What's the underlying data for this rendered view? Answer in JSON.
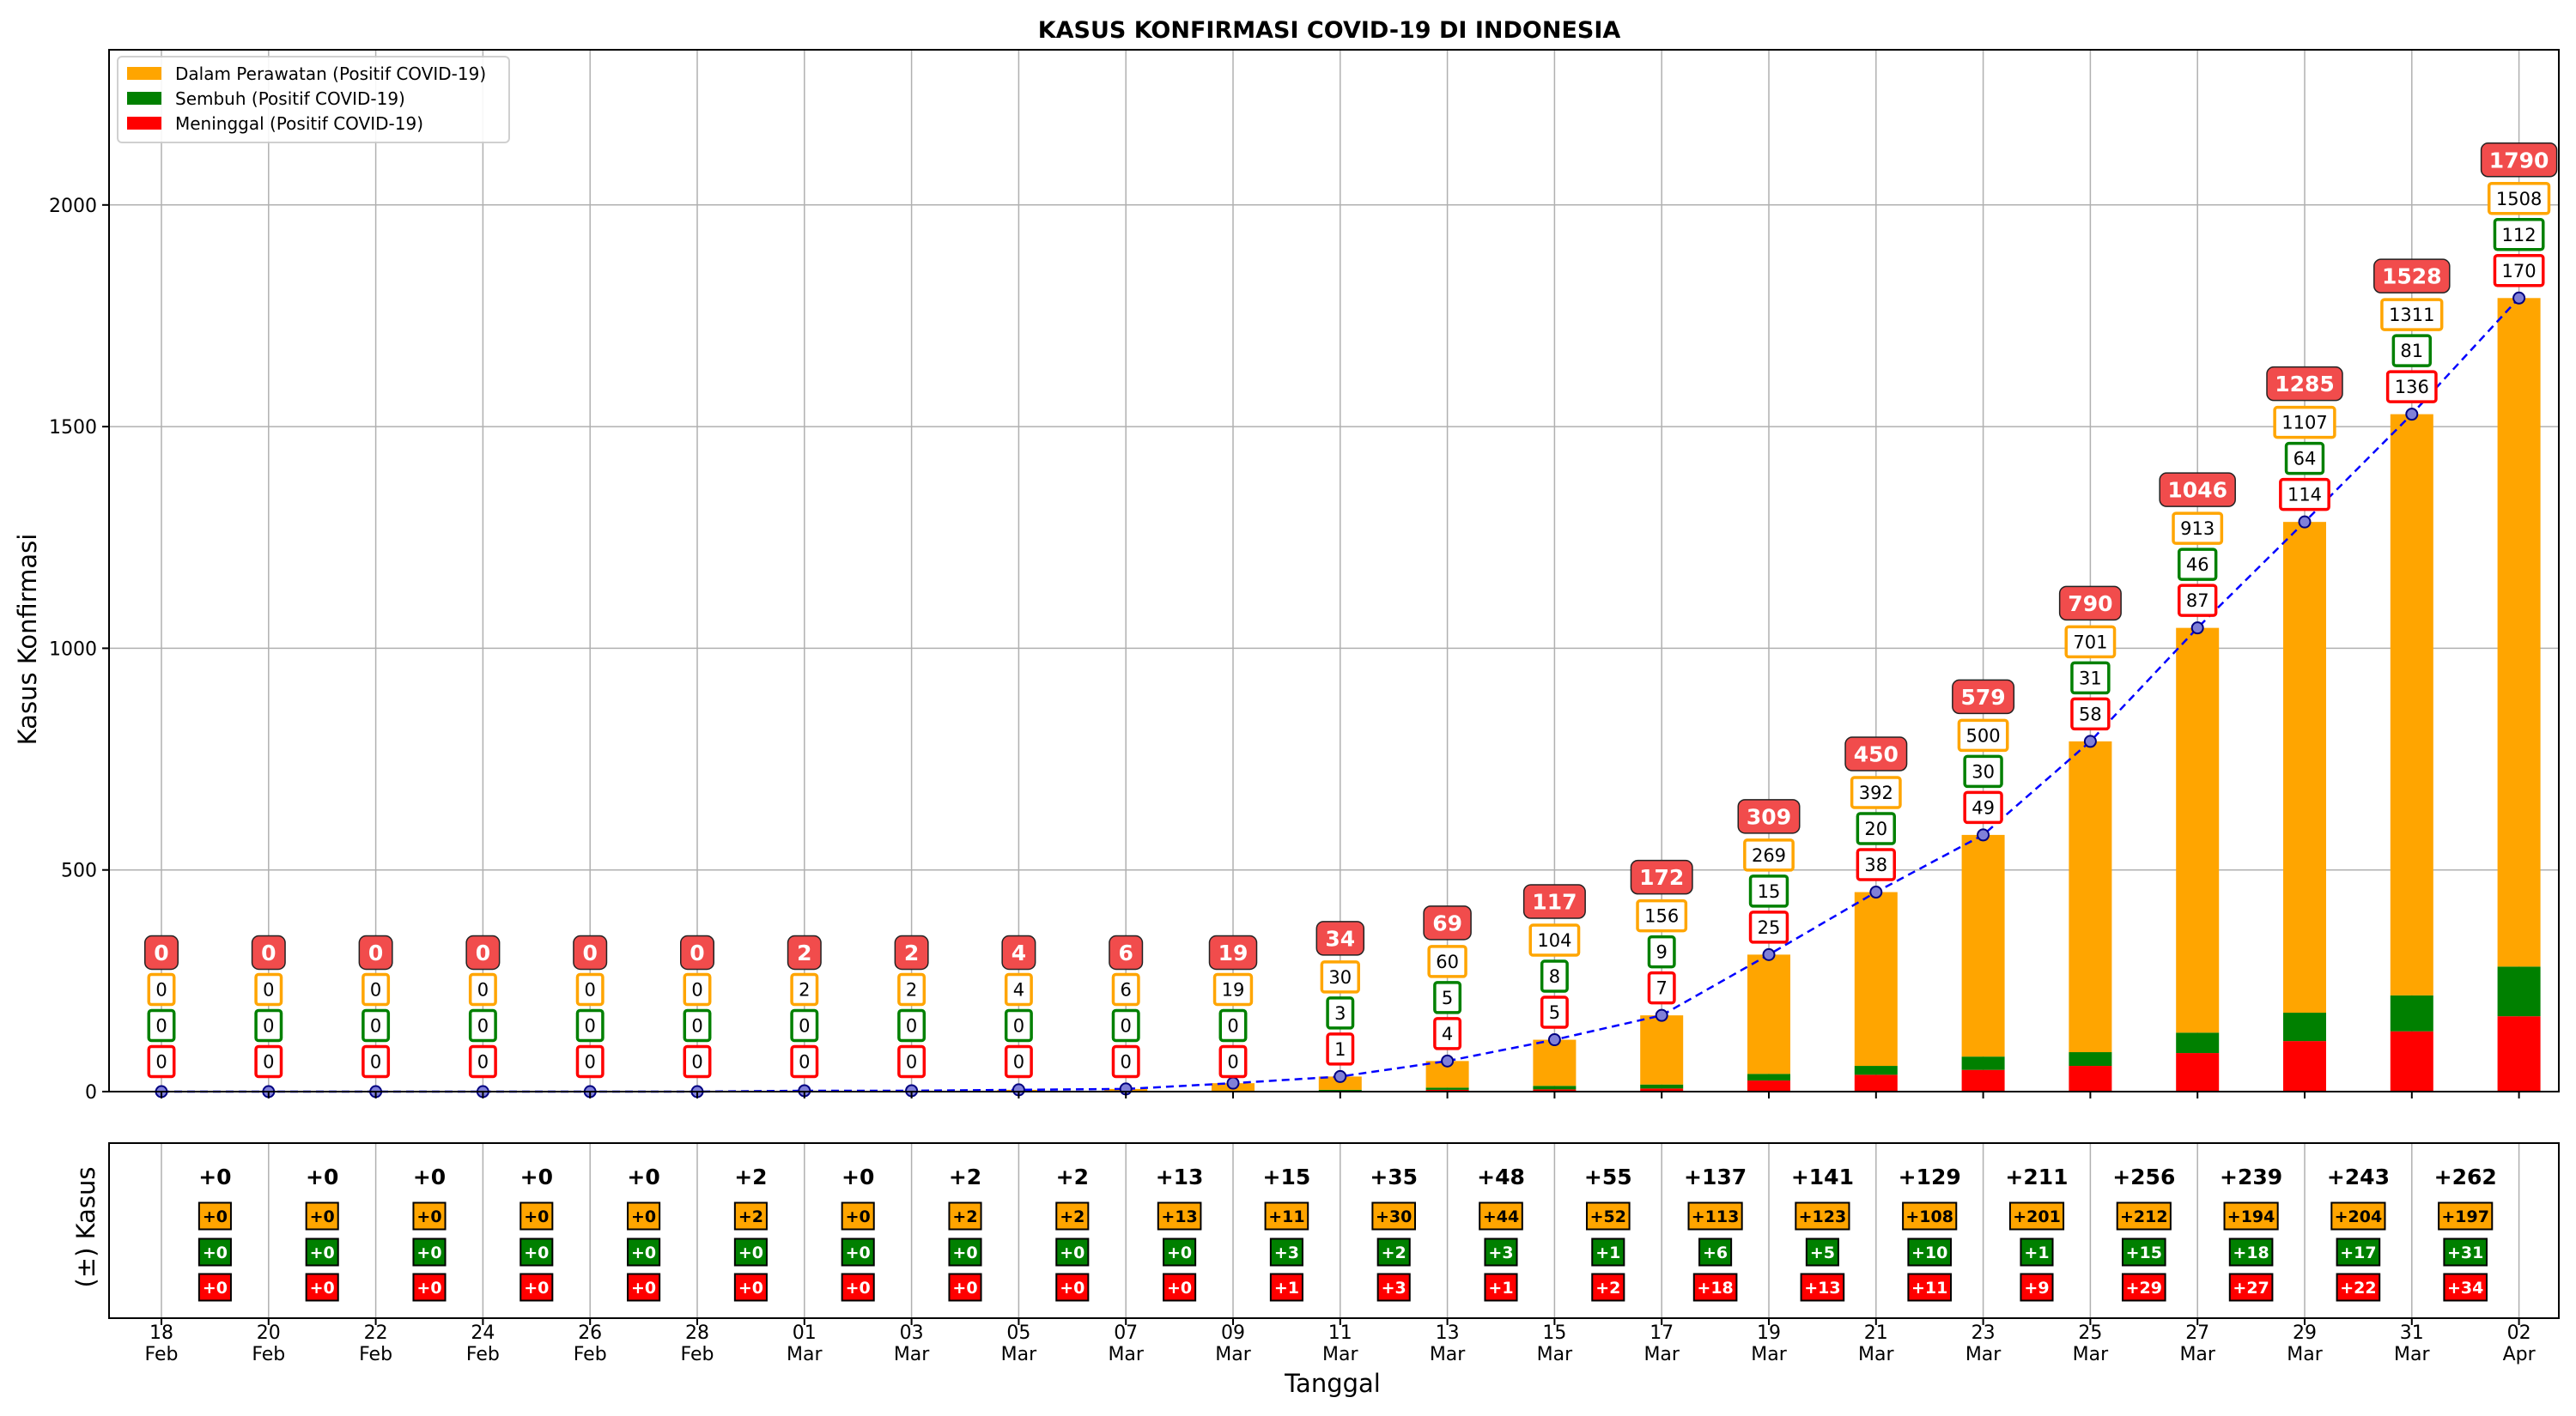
{
  "chart_data": {
    "type": "bar",
    "title": "KASUS KONFIRMASI COVID-19 DI INDONESIA",
    "xlabel": "Tanggal",
    "ylabel": "Kasus Konfirmasi",
    "ylabel_bottom": "(±) Kasus",
    "ylim": [
      0,
      2350
    ],
    "yticks": [
      "0",
      "500",
      "1000",
      "1500",
      "2000"
    ],
    "ytick_values": [
      0,
      500,
      1000,
      1500,
      2000
    ],
    "grid": true,
    "legend_position": "top-left",
    "dates": [
      [
        "18",
        "Feb"
      ],
      [
        "20",
        "Feb"
      ],
      [
        "22",
        "Feb"
      ],
      [
        "24",
        "Feb"
      ],
      [
        "26",
        "Feb"
      ],
      [
        "28",
        "Feb"
      ],
      [
        "01",
        "Mar"
      ],
      [
        "03",
        "Mar"
      ],
      [
        "05",
        "Mar"
      ],
      [
        "07",
        "Mar"
      ],
      [
        "09",
        "Mar"
      ],
      [
        "11",
        "Mar"
      ],
      [
        "13",
        "Mar"
      ],
      [
        "15",
        "Mar"
      ],
      [
        "17",
        "Mar"
      ],
      [
        "19",
        "Mar"
      ],
      [
        "21",
        "Mar"
      ],
      [
        "23",
        "Mar"
      ],
      [
        "25",
        "Mar"
      ],
      [
        "27",
        "Mar"
      ],
      [
        "29",
        "Mar"
      ],
      [
        "31",
        "Mar"
      ],
      [
        "02",
        "Apr"
      ]
    ],
    "series": [
      {
        "name": "Dalam Perawatan (Positif COVID-19)",
        "color": "#FFA500",
        "values": [
          0,
          0,
          0,
          0,
          0,
          0,
          2,
          2,
          4,
          6,
          19,
          30,
          60,
          104,
          156,
          269,
          392,
          500,
          701,
          913,
          1107,
          1311,
          1508
        ],
        "labels": [
          "0",
          "0",
          "0",
          "0",
          "0",
          "0",
          "2",
          "2",
          "4",
          "6",
          "19",
          "30",
          "60",
          "104",
          "156",
          "269",
          "392",
          "500",
          "701",
          "913",
          "1107",
          "1311",
          "1508"
        ]
      },
      {
        "name": "Sembuh (Positif COVID-19)",
        "color": "#008000",
        "values": [
          0,
          0,
          0,
          0,
          0,
          0,
          0,
          0,
          0,
          0,
          0,
          3,
          5,
          8,
          9,
          15,
          20,
          30,
          31,
          46,
          64,
          81,
          112
        ],
        "labels": [
          "0",
          "0",
          "0",
          "0",
          "0",
          "0",
          "0",
          "0",
          "0",
          "0",
          "0",
          "3",
          "5",
          "8",
          "9",
          "15",
          "20",
          "30",
          "31",
          "46",
          "64",
          "81",
          "112"
        ]
      },
      {
        "name": "Meninggal (Positif COVID-19)",
        "color": "#FF0000",
        "values": [
          0,
          0,
          0,
          0,
          0,
          0,
          0,
          0,
          0,
          0,
          0,
          1,
          4,
          5,
          7,
          25,
          38,
          49,
          58,
          87,
          114,
          136,
          170
        ],
        "labels": [
          "0",
          "0",
          "0",
          "0",
          "0",
          "0",
          "0",
          "0",
          "0",
          "0",
          "0",
          "1",
          "4",
          "5",
          "7",
          "25",
          "38",
          "49",
          "58",
          "87",
          "114",
          "136",
          "170"
        ]
      }
    ],
    "total": [
      0,
      0,
      0,
      0,
      0,
      0,
      2,
      2,
      4,
      6,
      19,
      34,
      69,
      117,
      172,
      309,
      450,
      579,
      790,
      1046,
      1285,
      1528,
      1790
    ],
    "total_labels": [
      "0",
      "0",
      "0",
      "0",
      "0",
      "0",
      "2",
      "2",
      "4",
      "6",
      "19",
      "34",
      "69",
      "117",
      "172",
      "309",
      "450",
      "579",
      "790",
      "1046",
      "1285",
      "1528",
      "1790"
    ],
    "delta_total": [
      "+0",
      "+0",
      "+0",
      "+0",
      "+0",
      "+2",
      "+0",
      "+2",
      "+2",
      "+13",
      "+15",
      "+35",
      "+48",
      "+55",
      "+137",
      "+141",
      "+129",
      "+211",
      "+256",
      "+239",
      "+243",
      "+262"
    ],
    "delta_perawatan": [
      "+0",
      "+0",
      "+0",
      "+0",
      "+0",
      "+2",
      "+0",
      "+2",
      "+2",
      "+13",
      "+11",
      "+30",
      "+44",
      "+52",
      "+113",
      "+123",
      "+108",
      "+201",
      "+212",
      "+194",
      "+204",
      "+197"
    ],
    "delta_sembuh": [
      "+0",
      "+0",
      "+0",
      "+0",
      "+0",
      "+0",
      "+0",
      "+0",
      "+0",
      "+0",
      "+3",
      "+2",
      "+3",
      "+1",
      "+6",
      "+5",
      "+10",
      "+1",
      "+15",
      "+18",
      "+17",
      "+31"
    ],
    "delta_meninggal": [
      "+0",
      "+0",
      "+0",
      "+0",
      "+0",
      "+0",
      "+0",
      "+0",
      "+0",
      "+0",
      "+1",
      "+3",
      "+1",
      "+2",
      "+18",
      "+13",
      "+11",
      "+9",
      "+29",
      "+27",
      "+22",
      "+34"
    ],
    "colors": {
      "perawatan": "#FFA500",
      "sembuh": "#008000",
      "meninggal": "#FF0000",
      "total_badge": "#F14C4C",
      "trend_line": "#0000FF"
    }
  }
}
